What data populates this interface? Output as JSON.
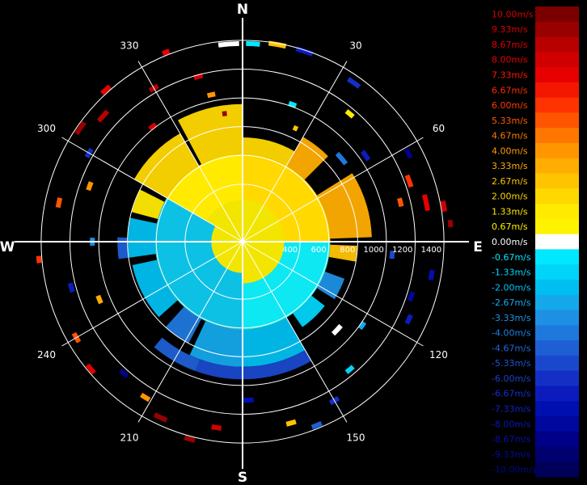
{
  "chart_data": {
    "type": "polar-heatmap",
    "title": "",
    "cardinal_labels": [
      {
        "text": "N",
        "angle_deg": 0
      },
      {
        "text": "E",
        "angle_deg": 90
      },
      {
        "text": "S",
        "angle_deg": 180
      },
      {
        "text": "W",
        "angle_deg": 270
      }
    ],
    "angle_labels": [
      {
        "text": "30",
        "angle_deg": 30
      },
      {
        "text": "60",
        "angle_deg": 60
      },
      {
        "text": "120",
        "angle_deg": 120
      },
      {
        "text": "150",
        "angle_deg": 150
      },
      {
        "text": "210",
        "angle_deg": 210
      },
      {
        "text": "240",
        "angle_deg": 240
      },
      {
        "text": "300",
        "angle_deg": 300
      },
      {
        "text": "330",
        "angle_deg": 330
      }
    ],
    "range_labels": [
      "400",
      "600",
      "800",
      "1000",
      "1200",
      "1400"
    ],
    "range_rings": [
      400,
      600,
      800,
      1000,
      1200,
      1400
    ],
    "r_max": 1450,
    "colorbar": {
      "labels": [
        "10.00m/s",
        "9.33m/s",
        "8.67m/s",
        "8.00m/s",
        "7.33m/s",
        "6.67m/s",
        "6.00m/s",
        "5.33m/s",
        "4.67m/s",
        "4.00m/s",
        "3.33m/s",
        "2.67m/s",
        "2.00m/s",
        "1.33m/s",
        "0.67m/s",
        "0.00m/s",
        "-0.67m/s",
        "-1.33m/s",
        "-2.00m/s",
        "-2.67m/s",
        "-3.33m/s",
        "-4.00m/s",
        "-4.67m/s",
        "-5.33m/s",
        "-6.00m/s",
        "-6.67m/s",
        "-7.33m/s",
        "-8.00m/s",
        "-8.67m/s",
        "-9.33m/s",
        "-10.00m/s"
      ],
      "colors": [
        "#7a0000",
        "#990000",
        "#b80000",
        "#d10000",
        "#e60000",
        "#f41700",
        "#ff3300",
        "#ff5500",
        "#ff7700",
        "#ff9600",
        "#ffad00",
        "#ffc400",
        "#ffd800",
        "#ffea00",
        "#fff200",
        "#ffffff",
        "#00e8ff",
        "#00d4f8",
        "#00bff0",
        "#14a8ea",
        "#1e90e4",
        "#1f78dc",
        "#1e60d4",
        "#1a48cc",
        "#1430c4",
        "#0c1cbc",
        "#0010b0",
        "#00089e",
        "#000088",
        "#000070",
        "#000058"
      ],
      "text_colors": [
        "#d80000",
        "#d80000",
        "#e00000",
        "#e60000",
        "#ff1a00",
        "#ff2a00",
        "#ff3c00",
        "#ff5c00",
        "#ff7a00",
        "#ff9a00",
        "#ffad00",
        "#ffc400",
        "#ffd800",
        "#ffea00",
        "#fff200",
        "#ffffff",
        "#00e8ff",
        "#00d8ff",
        "#00c4ff",
        "#16aaf0",
        "#1e96e8",
        "#1f80e2",
        "#1f6ade",
        "#1d54d8",
        "#1a40d2",
        "#1530cc",
        "#0f22c4",
        "#0a18b8",
        "#0610a8",
        "#040c98",
        "#020888"
      ]
    },
    "sectors": [
      {
        "a0": 332,
        "a1": 360,
        "r0": 0.42,
        "r1": 0.66,
        "v": 2.0
      },
      {
        "a0": 300,
        "a1": 330,
        "r0": 0.42,
        "r1": 0.6,
        "v": 2.3
      },
      {
        "a0": 285,
        "a1": 297,
        "r0": 0.42,
        "r1": 0.55,
        "v": 1.5
      },
      {
        "a0": 0,
        "a1": 30,
        "r0": 0.42,
        "r1": 0.5,
        "v": 1.8
      },
      {
        "a0": 30,
        "a1": 45,
        "r0": 0.42,
        "r1": 0.58,
        "v": 3.0
      },
      {
        "a0": 58,
        "a1": 88,
        "r0": 0.42,
        "r1": 0.62,
        "v": 3.6
      },
      {
        "a0": 92,
        "a1": 100,
        "r0": 0.42,
        "r1": 0.55,
        "v": 2.6
      },
      {
        "a0": 110,
        "a1": 122,
        "r0": 0.42,
        "r1": 0.52,
        "v": -3.3
      },
      {
        "a0": 128,
        "a1": 145,
        "r0": 0.42,
        "r1": 0.5,
        "v": -1.5
      },
      {
        "a0": 150,
        "a1": 180,
        "r0": 0.42,
        "r1": 0.6,
        "v": -2.2
      },
      {
        "a0": 180,
        "a1": 205,
        "r0": 0.42,
        "r1": 0.6,
        "v": -2.6
      },
      {
        "a0": 208,
        "a1": 222,
        "r0": 0.42,
        "r1": 0.55,
        "v": -4.3
      },
      {
        "a0": 228,
        "a1": 258,
        "r0": 0.42,
        "r1": 0.54,
        "v": -2.2
      },
      {
        "a0": 262,
        "a1": 282,
        "r0": 0.42,
        "r1": 0.55,
        "v": -1.9
      },
      {
        "a0": 0,
        "a1": 360,
        "r0": 0.0,
        "r1": 0.42,
        "v": 0.6
      },
      {
        "a0": 180,
        "a1": 300,
        "r0": 0.15,
        "r1": 0.42,
        "v": -2.0
      },
      {
        "a0": 300,
        "a1": 360,
        "r0": 0.2,
        "r1": 0.42,
        "v": 1.5
      },
      {
        "a0": 0,
        "a1": 90,
        "r0": 0.2,
        "r1": 0.42,
        "v": 1.8
      },
      {
        "a0": 90,
        "a1": 180,
        "r0": 0.2,
        "r1": 0.42,
        "v": -0.9
      },
      {
        "a0": 150,
        "a1": 200,
        "r0": 0.6,
        "r1": 0.66,
        "v": -5.4
      },
      {
        "a0": 200,
        "a1": 220,
        "r0": 0.6,
        "r1": 0.66,
        "v": -5.0
      },
      {
        "a0": 262,
        "a1": 272,
        "r0": 0.55,
        "r1": 0.6,
        "v": -4.7
      }
    ],
    "echoes": [
      {
        "a": 356,
        "r": 0.95,
        "w": 6,
        "v": 0.0
      },
      {
        "a": 3,
        "r": 0.95,
        "w": 4,
        "v": -1.0
      },
      {
        "a": 10,
        "r": 0.96,
        "w": 5,
        "v": 2.6
      },
      {
        "a": 18,
        "r": 0.96,
        "w": 5,
        "v": -6.5
      },
      {
        "a": 35,
        "r": 0.93,
        "w": 4,
        "v": -6.0
      },
      {
        "a": 40,
        "r": 0.8,
        "w": 3,
        "v": 1.6
      },
      {
        "a": 50,
        "r": 0.62,
        "w": 6,
        "v": -4.3
      },
      {
        "a": 55,
        "r": 0.72,
        "w": 4,
        "v": -6.8
      },
      {
        "a": 70,
        "r": 0.85,
        "w": 4,
        "v": 6.0
      },
      {
        "a": 78,
        "r": 0.9,
        "w": 5,
        "v": 7.2
      },
      {
        "a": 80,
        "r": 0.98,
        "w": 3,
        "v": 8.0
      },
      {
        "a": 85,
        "r": 1.0,
        "w": 2,
        "v": 9.5
      },
      {
        "a": 76,
        "r": 0.78,
        "w": 3,
        "v": 5.0
      },
      {
        "a": 95,
        "r": 0.72,
        "w": 3,
        "v": -5.5
      },
      {
        "a": 108,
        "r": 0.85,
        "w": 3,
        "v": -8.0
      },
      {
        "a": 115,
        "r": 0.88,
        "w": 3,
        "v": -6.4
      },
      {
        "a": 125,
        "r": 0.7,
        "w": 3,
        "v": -3.0
      },
      {
        "a": 133,
        "r": 0.62,
        "w": 5,
        "v": 0.0
      },
      {
        "a": 140,
        "r": 0.8,
        "w": 3,
        "v": -1.5
      },
      {
        "a": 150,
        "r": 0.88,
        "w": 3,
        "v": -6.0
      },
      {
        "a": 158,
        "r": 0.95,
        "w": 3,
        "v": -5.0
      },
      {
        "a": 165,
        "r": 0.9,
        "w": 3,
        "v": 2.5
      },
      {
        "a": 178,
        "r": 0.76,
        "w": 4,
        "v": -7.5
      },
      {
        "a": 188,
        "r": 0.9,
        "w": 3,
        "v": 8.0
      },
      {
        "a": 195,
        "r": 0.98,
        "w": 3,
        "v": 9.0
      },
      {
        "a": 205,
        "r": 0.93,
        "w": 4,
        "v": 9.3
      },
      {
        "a": 212,
        "r": 0.88,
        "w": 3,
        "v": 4.0
      },
      {
        "a": 222,
        "r": 0.85,
        "w": 3,
        "v": -9.0
      },
      {
        "a": 230,
        "r": 0.95,
        "w": 3,
        "v": 7.0
      },
      {
        "a": 240,
        "r": 0.92,
        "w": 3,
        "v": 5.5
      },
      {
        "a": 248,
        "r": 0.74,
        "w": 3,
        "v": 3.0
      },
      {
        "a": 255,
        "r": 0.85,
        "w": 3,
        "v": -7.0
      },
      {
        "a": 265,
        "r": 0.98,
        "w": 2,
        "v": 6.0
      },
      {
        "a": 270,
        "r": 0.72,
        "w": 3,
        "v": -3.5
      },
      {
        "a": 282,
        "r": 0.9,
        "w": 3,
        "v": 5.5
      },
      {
        "a": 290,
        "r": 0.78,
        "w": 3,
        "v": 4.0
      },
      {
        "a": 300,
        "r": 0.85,
        "w": 3,
        "v": -6.2
      },
      {
        "a": 305,
        "r": 0.95,
        "w": 4,
        "v": 9.0
      },
      {
        "a": 312,
        "r": 0.9,
        "w": 4,
        "v": 8.5
      },
      {
        "a": 318,
        "r": 0.98,
        "w": 3,
        "v": 7.0
      },
      {
        "a": 322,
        "r": 0.7,
        "w": 3,
        "v": 8.0
      },
      {
        "a": 330,
        "r": 0.85,
        "w": 3,
        "v": 8.6
      },
      {
        "a": 338,
        "r": 0.98,
        "w": 2,
        "v": 7.5
      },
      {
        "a": 345,
        "r": 0.82,
        "w": 3,
        "v": 8.0
      },
      {
        "a": 348,
        "r": 0.72,
        "w": 3,
        "v": 4.0
      },
      {
        "a": 352,
        "r": 0.62,
        "w": 2,
        "v": 9.0
      },
      {
        "a": 20,
        "r": 0.7,
        "w": 3,
        "v": -1.0
      },
      {
        "a": 25,
        "r": 0.6,
        "w": 2,
        "v": 2.8
      },
      {
        "a": 62,
        "r": 0.9,
        "w": 3,
        "v": -8.5
      },
      {
        "a": 100,
        "r": 0.92,
        "w": 3,
        "v": -7.5
      }
    ]
  }
}
